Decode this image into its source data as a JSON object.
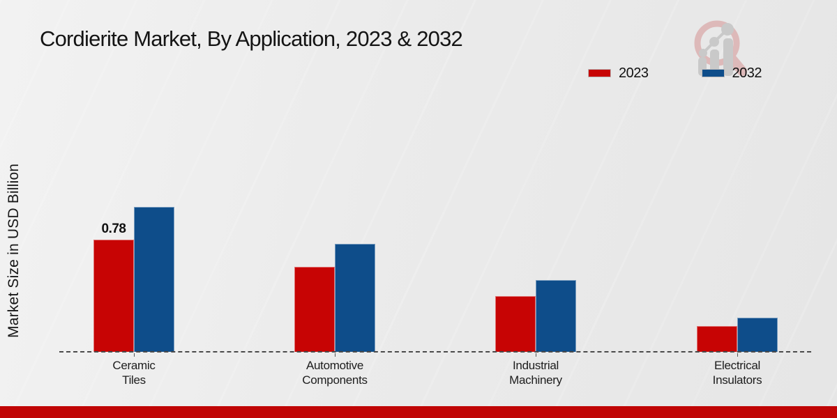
{
  "page": {
    "title": "Cordierite Market, By Application, 2023 & 2032",
    "y_axis_label": "Market Size in USD Billion",
    "colors": {
      "series_2023": "#c70404",
      "series_2032": "#0e4d8a",
      "bottom_bar": "#c00505",
      "background": "#ebebeb",
      "axis_line": "#4a4a4a"
    },
    "watermark": "magnifier-growth-chart-logo"
  },
  "legend": {
    "items": [
      {
        "label": "2023",
        "color": "#c70404"
      },
      {
        "label": "2032",
        "color": "#0e4d8a"
      }
    ]
  },
  "chart_data": {
    "type": "bar",
    "title": "Cordierite Market, By Application, 2023 & 2032",
    "categories": [
      "Ceramic Tiles",
      "Automotive Components",
      "Industrial Machinery",
      "Electrical Insulators"
    ],
    "series": [
      {
        "name": "2023",
        "color": "#c70404",
        "values": [
          0.78,
          0.59,
          0.39,
          0.18
        ]
      },
      {
        "name": "2032",
        "color": "#0e4d8a",
        "values": [
          1.01,
          0.75,
          0.5,
          0.24
        ]
      }
    ],
    "xlabel": "",
    "ylabel": "Market Size in USD Billion",
    "ylim": [
      0,
      1.15
    ],
    "grid": false,
    "legend_position": "top-right",
    "data_labels": [
      {
        "series": "2023",
        "category": "Ceramic Tiles",
        "label": "0.78"
      }
    ]
  }
}
